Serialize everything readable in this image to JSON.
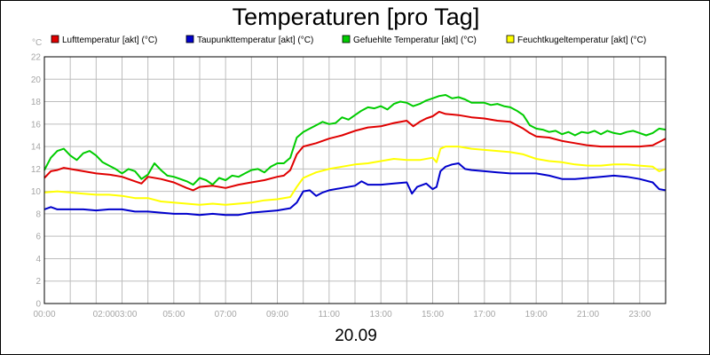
{
  "chart_data": {
    "type": "line",
    "title": "Temperaturen [pro Tag]",
    "date_label": "20.09",
    "ylabel": "°C",
    "ylim": [
      0,
      22
    ],
    "y_ticks": [
      "0",
      "2",
      "4",
      "6",
      "8",
      "10",
      "12",
      "14",
      "16",
      "18",
      "20",
      "22"
    ],
    "xlim_hours": [
      0,
      24
    ],
    "x_ticks": [
      {
        "h": 0,
        "label": "00:00"
      },
      {
        "h": 2.3,
        "label": "02:00"
      },
      {
        "h": 3.15,
        "label": "03:00"
      },
      {
        "h": 5,
        "label": "05:00"
      },
      {
        "h": 7,
        "label": "07:00"
      },
      {
        "h": 9,
        "label": "09:00"
      },
      {
        "h": 11,
        "label": "11:00"
      },
      {
        "h": 13,
        "label": "13:00"
      },
      {
        "h": 15,
        "label": "15:00"
      },
      {
        "h": 17,
        "label": "17:00"
      },
      {
        "h": 19,
        "label": "19:00"
      },
      {
        "h": 21,
        "label": "21:00"
      },
      {
        "h": 23,
        "label": "23:00"
      }
    ],
    "grid": true,
    "legend_position": "top",
    "series": [
      {
        "name": "Lufttemperatur [akt] (°C)",
        "color": "#e00000",
        "points": [
          [
            0,
            11.2
          ],
          [
            0.25,
            11.8
          ],
          [
            0.5,
            11.9
          ],
          [
            0.75,
            12.1
          ],
          [
            1,
            12
          ],
          [
            1.5,
            11.8
          ],
          [
            2,
            11.6
          ],
          [
            2.5,
            11.5
          ],
          [
            3,
            11.3
          ],
          [
            3.5,
            10.9
          ],
          [
            3.75,
            10.7
          ],
          [
            4,
            11.3
          ],
          [
            4.5,
            11.1
          ],
          [
            5,
            10.8
          ],
          [
            5.5,
            10.3
          ],
          [
            5.75,
            10.1
          ],
          [
            6,
            10.4
          ],
          [
            6.5,
            10.5
          ],
          [
            7,
            10.3
          ],
          [
            7.5,
            10.6
          ],
          [
            8,
            10.8
          ],
          [
            8.5,
            11
          ],
          [
            9,
            11.3
          ],
          [
            9.25,
            11.4
          ],
          [
            9.5,
            11.9
          ],
          [
            9.75,
            13.3
          ],
          [
            10,
            14
          ],
          [
            10.5,
            14.3
          ],
          [
            11,
            14.7
          ],
          [
            11.5,
            15
          ],
          [
            12,
            15.4
          ],
          [
            12.5,
            15.7
          ],
          [
            13,
            15.8
          ],
          [
            13.5,
            16.1
          ],
          [
            14,
            16.3
          ],
          [
            14.25,
            15.8
          ],
          [
            14.5,
            16.2
          ],
          [
            14.75,
            16.5
          ],
          [
            15,
            16.7
          ],
          [
            15.25,
            17.1
          ],
          [
            15.5,
            16.9
          ],
          [
            16,
            16.8
          ],
          [
            16.5,
            16.6
          ],
          [
            17,
            16.5
          ],
          [
            17.5,
            16.3
          ],
          [
            18,
            16.2
          ],
          [
            18.5,
            15.6
          ],
          [
            18.75,
            15.2
          ],
          [
            19,
            14.9
          ],
          [
            19.5,
            14.8
          ],
          [
            20,
            14.5
          ],
          [
            20.5,
            14.3
          ],
          [
            21,
            14.1
          ],
          [
            21.5,
            14
          ],
          [
            22,
            14
          ],
          [
            22.5,
            14
          ],
          [
            23,
            14
          ],
          [
            23.5,
            14.1
          ],
          [
            24,
            14.7
          ]
        ]
      },
      {
        "name": "Taupunkttemperatur [akt] (°C)",
        "color": "#0000cc",
        "points": [
          [
            0,
            8.4
          ],
          [
            0.25,
            8.6
          ],
          [
            0.5,
            8.4
          ],
          [
            1,
            8.4
          ],
          [
            1.5,
            8.4
          ],
          [
            2,
            8.3
          ],
          [
            2.5,
            8.4
          ],
          [
            3,
            8.4
          ],
          [
            3.5,
            8.2
          ],
          [
            4,
            8.2
          ],
          [
            4.5,
            8.1
          ],
          [
            5,
            8
          ],
          [
            5.5,
            8
          ],
          [
            6,
            7.9
          ],
          [
            6.5,
            8
          ],
          [
            7,
            7.9
          ],
          [
            7.5,
            7.9
          ],
          [
            8,
            8.1
          ],
          [
            8.5,
            8.2
          ],
          [
            9,
            8.3
          ],
          [
            9.5,
            8.5
          ],
          [
            9.75,
            9
          ],
          [
            10,
            10
          ],
          [
            10.25,
            10.1
          ],
          [
            10.5,
            9.6
          ],
          [
            10.75,
            9.9
          ],
          [
            11,
            10.1
          ],
          [
            11.5,
            10.3
          ],
          [
            12,
            10.5
          ],
          [
            12.25,
            10.9
          ],
          [
            12.5,
            10.6
          ],
          [
            13,
            10.6
          ],
          [
            13.5,
            10.7
          ],
          [
            14,
            10.8
          ],
          [
            14.2,
            9.8
          ],
          [
            14.4,
            10.4
          ],
          [
            14.75,
            10.7
          ],
          [
            15,
            10.2
          ],
          [
            15.15,
            10.4
          ],
          [
            15.3,
            11.8
          ],
          [
            15.5,
            12.2
          ],
          [
            15.75,
            12.4
          ],
          [
            16,
            12.5
          ],
          [
            16.25,
            12
          ],
          [
            16.5,
            11.9
          ],
          [
            17,
            11.8
          ],
          [
            17.5,
            11.7
          ],
          [
            18,
            11.6
          ],
          [
            18.5,
            11.6
          ],
          [
            19,
            11.6
          ],
          [
            19.5,
            11.4
          ],
          [
            20,
            11.1
          ],
          [
            20.5,
            11.1
          ],
          [
            21,
            11.2
          ],
          [
            21.5,
            11.3
          ],
          [
            22,
            11.4
          ],
          [
            22.5,
            11.3
          ],
          [
            23,
            11.1
          ],
          [
            23.5,
            10.8
          ],
          [
            23.75,
            10.2
          ],
          [
            24,
            10.1
          ]
        ]
      },
      {
        "name": "Gefuehlte Temperatur [akt] (°C)",
        "color": "#00cc00",
        "points": [
          [
            0,
            11.9
          ],
          [
            0.25,
            13
          ],
          [
            0.5,
            13.6
          ],
          [
            0.75,
            13.8
          ],
          [
            1,
            13.2
          ],
          [
            1.25,
            12.8
          ],
          [
            1.5,
            13.4
          ],
          [
            1.75,
            13.6
          ],
          [
            2,
            13.2
          ],
          [
            2.25,
            12.6
          ],
          [
            2.5,
            12.3
          ],
          [
            2.75,
            12
          ],
          [
            3,
            11.6
          ],
          [
            3.25,
            12
          ],
          [
            3.5,
            11.8
          ],
          [
            3.75,
            11.1
          ],
          [
            4,
            11.5
          ],
          [
            4.25,
            12.5
          ],
          [
            4.5,
            11.9
          ],
          [
            4.75,
            11.4
          ],
          [
            5,
            11.3
          ],
          [
            5.25,
            11.1
          ],
          [
            5.5,
            10.9
          ],
          [
            5.75,
            10.6
          ],
          [
            6,
            11.2
          ],
          [
            6.25,
            11
          ],
          [
            6.5,
            10.6
          ],
          [
            6.75,
            11.2
          ],
          [
            7,
            11
          ],
          [
            7.25,
            11.4
          ],
          [
            7.5,
            11.3
          ],
          [
            7.75,
            11.6
          ],
          [
            8,
            11.9
          ],
          [
            8.25,
            12
          ],
          [
            8.5,
            11.7
          ],
          [
            8.75,
            12.2
          ],
          [
            9,
            12.5
          ],
          [
            9.25,
            12.5
          ],
          [
            9.5,
            13
          ],
          [
            9.75,
            14.8
          ],
          [
            10,
            15.3
          ],
          [
            10.25,
            15.6
          ],
          [
            10.5,
            15.9
          ],
          [
            10.75,
            16.2
          ],
          [
            11,
            16
          ],
          [
            11.25,
            16.1
          ],
          [
            11.5,
            16.6
          ],
          [
            11.75,
            16.4
          ],
          [
            12,
            16.8
          ],
          [
            12.25,
            17.2
          ],
          [
            12.5,
            17.5
          ],
          [
            12.75,
            17.4
          ],
          [
            13,
            17.6
          ],
          [
            13.25,
            17.3
          ],
          [
            13.5,
            17.8
          ],
          [
            13.75,
            18
          ],
          [
            14,
            17.9
          ],
          [
            14.25,
            17.6
          ],
          [
            14.5,
            17.8
          ],
          [
            14.75,
            18.1
          ],
          [
            15,
            18.3
          ],
          [
            15.25,
            18.5
          ],
          [
            15.5,
            18.6
          ],
          [
            15.75,
            18.3
          ],
          [
            16,
            18.4
          ],
          [
            16.25,
            18.2
          ],
          [
            16.5,
            17.9
          ],
          [
            16.75,
            17.9
          ],
          [
            17,
            17.9
          ],
          [
            17.25,
            17.7
          ],
          [
            17.5,
            17.8
          ],
          [
            17.75,
            17.6
          ],
          [
            18,
            17.5
          ],
          [
            18.25,
            17.2
          ],
          [
            18.5,
            16.8
          ],
          [
            18.75,
            15.9
          ],
          [
            19,
            15.6
          ],
          [
            19.25,
            15.5
          ],
          [
            19.5,
            15.3
          ],
          [
            19.75,
            15.4
          ],
          [
            20,
            15.1
          ],
          [
            20.25,
            15.3
          ],
          [
            20.5,
            15
          ],
          [
            20.75,
            15.3
          ],
          [
            21,
            15.2
          ],
          [
            21.25,
            15.4
          ],
          [
            21.5,
            15.1
          ],
          [
            21.75,
            15.4
          ],
          [
            22,
            15.2
          ],
          [
            22.25,
            15.1
          ],
          [
            22.5,
            15.3
          ],
          [
            22.75,
            15.4
          ],
          [
            23,
            15.2
          ],
          [
            23.25,
            15
          ],
          [
            23.5,
            15.2
          ],
          [
            23.75,
            15.6
          ],
          [
            24,
            15.5
          ]
        ]
      },
      {
        "name": "Feuchtkugeltemperatur [akt] (°C)",
        "color": "#ffff00",
        "points": [
          [
            0,
            9.9
          ],
          [
            0.5,
            10
          ],
          [
            1,
            9.9
          ],
          [
            1.5,
            9.8
          ],
          [
            2,
            9.7
          ],
          [
            2.5,
            9.7
          ],
          [
            3,
            9.6
          ],
          [
            3.5,
            9.4
          ],
          [
            4,
            9.4
          ],
          [
            4.5,
            9.1
          ],
          [
            5,
            9
          ],
          [
            5.5,
            8.9
          ],
          [
            6,
            8.8
          ],
          [
            6.5,
            8.9
          ],
          [
            7,
            8.8
          ],
          [
            7.5,
            8.9
          ],
          [
            8,
            9
          ],
          [
            8.5,
            9.2
          ],
          [
            9,
            9.3
          ],
          [
            9.5,
            9.5
          ],
          [
            9.75,
            10.4
          ],
          [
            10,
            11.2
          ],
          [
            10.5,
            11.7
          ],
          [
            11,
            12
          ],
          [
            11.5,
            12.2
          ],
          [
            12,
            12.4
          ],
          [
            12.5,
            12.5
          ],
          [
            13,
            12.7
          ],
          [
            13.5,
            12.9
          ],
          [
            14,
            12.8
          ],
          [
            14.5,
            12.8
          ],
          [
            15,
            13
          ],
          [
            15.15,
            12.6
          ],
          [
            15.3,
            13.8
          ],
          [
            15.5,
            14
          ],
          [
            16,
            14
          ],
          [
            16.5,
            13.8
          ],
          [
            17,
            13.7
          ],
          [
            17.5,
            13.6
          ],
          [
            18,
            13.5
          ],
          [
            18.5,
            13.3
          ],
          [
            19,
            12.9
          ],
          [
            19.5,
            12.7
          ],
          [
            20,
            12.6
          ],
          [
            20.5,
            12.4
          ],
          [
            21,
            12.3
          ],
          [
            21.5,
            12.3
          ],
          [
            22,
            12.4
          ],
          [
            22.5,
            12.4
          ],
          [
            23,
            12.3
          ],
          [
            23.5,
            12.2
          ],
          [
            23.75,
            11.8
          ],
          [
            24,
            12
          ]
        ]
      }
    ]
  }
}
